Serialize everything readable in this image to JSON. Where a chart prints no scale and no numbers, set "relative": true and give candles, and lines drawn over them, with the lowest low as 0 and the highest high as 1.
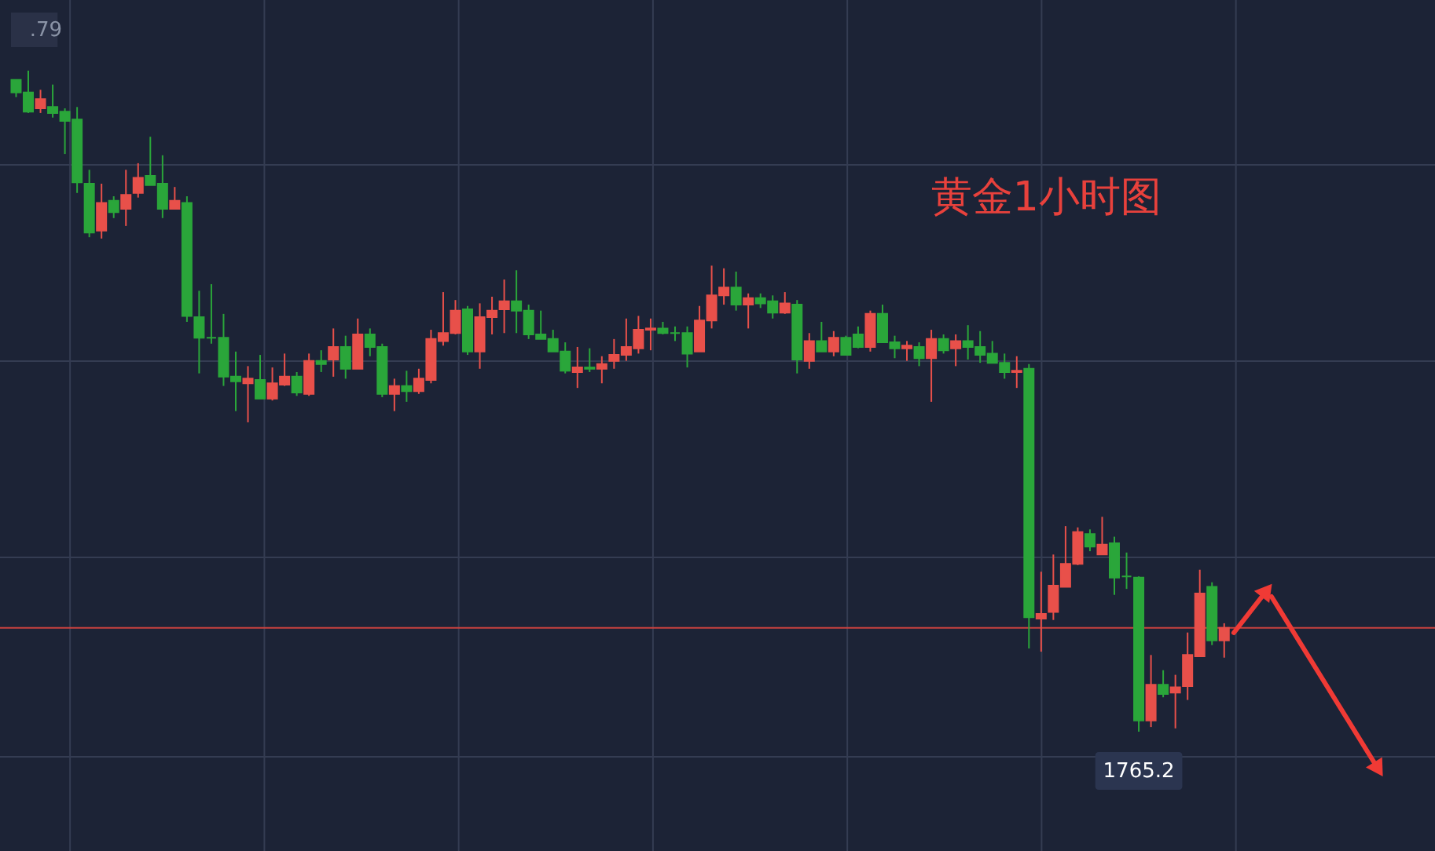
{
  "chart_data": {
    "type": "candlestick",
    "relative": true,
    "grid": true,
    "categories": [
      null,
      null,
      null,
      null,
      null,
      null,
      null,
      null,
      null,
      null,
      null,
      null,
      null,
      null,
      null,
      null,
      null,
      null,
      null,
      null,
      null,
      null,
      null,
      null,
      null,
      null,
      null,
      null,
      null,
      null,
      null,
      null,
      null,
      null,
      null,
      null,
      null,
      null,
      null,
      null,
      null,
      null,
      null,
      null,
      null,
      null,
      null,
      null,
      null,
      null,
      null,
      null,
      null,
      null,
      null,
      null,
      null,
      null,
      null,
      null,
      null,
      null,
      null,
      null,
      null,
      null,
      null,
      null,
      null,
      null,
      null,
      null,
      null,
      null,
      null,
      null,
      null,
      null,
      null,
      null,
      null,
      null,
      null,
      null,
      null,
      null,
      null,
      null,
      null,
      null,
      null,
      null,
      null,
      null,
      null,
      null,
      null,
      null,
      null,
      null
    ],
    "ohlc": [
      [
        0.986,
        0.986,
        0.96,
        0.967
      ],
      [
        0.967,
        1,
        0.936,
        0.938
      ],
      [
        0.943,
        0.971,
        0.936,
        0.957
      ],
      [
        0.945,
        0.979,
        0.929,
        0.936
      ],
      [
        0.938,
        0.943,
        0.874,
        0.924
      ],
      [
        0.926,
        0.945,
        0.815,
        0.831
      ],
      [
        0.829,
        0.85,
        0.748,
        0.755
      ],
      [
        0.758,
        0.829,
        0.746,
        0.8
      ],
      [
        0.803,
        0.81,
        0.777,
        0.786
      ],
      [
        0.791,
        0.85,
        0.765,
        0.812
      ],
      [
        0.815,
        0.86,
        0.808,
        0.838
      ],
      [
        0.841,
        0.9,
        0.827,
        0.827
      ],
      [
        0.829,
        0.872,
        0.777,
        0.791
      ],
      [
        0.791,
        0.824,
        0.791,
        0.803
      ],
      [
        0.8,
        0.81,
        0.62,
        0.629
      ],
      [
        0.627,
        0.667,
        0.542,
        0.596
      ],
      [
        0.596,
        0.677,
        0.587,
        0.596
      ],
      [
        0.596,
        0.632,
        0.523,
        0.537
      ],
      [
        0.537,
        0.575,
        0.485,
        0.53
      ],
      [
        0.527,
        0.553,
        0.468,
        0.534
      ],
      [
        0.532,
        0.57,
        0.504,
        0.504
      ],
      [
        0.504,
        0.551,
        0.501,
        0.527
      ],
      [
        0.525,
        0.572,
        0.523,
        0.537
      ],
      [
        0.537,
        0.544,
        0.508,
        0.513
      ],
      [
        0.511,
        0.572,
        0.508,
        0.561
      ],
      [
        0.561,
        0.577,
        0.544,
        0.556
      ],
      [
        0.563,
        0.61,
        0.537,
        0.582
      ],
      [
        0.582,
        0.599,
        0.534,
        0.549
      ],
      [
        0.549,
        0.625,
        0.549,
        0.601
      ],
      [
        0.601,
        0.61,
        0.568,
        0.582
      ],
      [
        0.582,
        0.587,
        0.506,
        0.511
      ],
      [
        0.511,
        0.534,
        0.485,
        0.523
      ],
      [
        0.523,
        0.546,
        0.499,
        0.515
      ],
      [
        0.515,
        0.549,
        0.511,
        0.534
      ],
      [
        0.532,
        0.608,
        0.527,
        0.594
      ],
      [
        0.591,
        0.665,
        0.584,
        0.603
      ],
      [
        0.603,
        0.653,
        0.601,
        0.637
      ],
      [
        0.639,
        0.644,
        0.57,
        0.575
      ],
      [
        0.575,
        0.648,
        0.549,
        0.627
      ],
      [
        0.627,
        0.658,
        0.601,
        0.637
      ],
      [
        0.639,
        0.684,
        0.603,
        0.651
      ],
      [
        0.651,
        0.698,
        0.603,
        0.637
      ],
      [
        0.637,
        0.646,
        0.594,
        0.601
      ],
      [
        0.601,
        0.637,
        0.594,
        0.594
      ],
      [
        0.594,
        0.608,
        0.575,
        0.575
      ],
      [
        0.575,
        0.589,
        0.542,
        0.546
      ],
      [
        0.544,
        0.582,
        0.52,
        0.551
      ],
      [
        0.551,
        0.58,
        0.544,
        0.549
      ],
      [
        0.549,
        0.568,
        0.527,
        0.556
      ],
      [
        0.561,
        0.594,
        0.549,
        0.57
      ],
      [
        0.57,
        0.625,
        0.561,
        0.582
      ],
      [
        0.58,
        0.629,
        0.572,
        0.608
      ],
      [
        0.608,
        0.625,
        0.577,
        0.61
      ],
      [
        0.61,
        0.62,
        0.601,
        0.603
      ],
      [
        0.603,
        0.613,
        0.591,
        0.603
      ],
      [
        0.603,
        0.613,
        0.551,
        0.572
      ],
      [
        0.575,
        0.644,
        0.575,
        0.622
      ],
      [
        0.622,
        0.705,
        0.61,
        0.66
      ],
      [
        0.66,
        0.701,
        0.646,
        0.672
      ],
      [
        0.672,
        0.696,
        0.637,
        0.646
      ],
      [
        0.646,
        0.663,
        0.61,
        0.656
      ],
      [
        0.656,
        0.663,
        0.641,
        0.648
      ],
      [
        0.651,
        0.66,
        0.625,
        0.634
      ],
      [
        0.634,
        0.665,
        0.632,
        0.648
      ],
      [
        0.646,
        0.653,
        0.542,
        0.563
      ],
      [
        0.561,
        0.603,
        0.549,
        0.591
      ],
      [
        0.591,
        0.62,
        0.575,
        0.575
      ],
      [
        0.575,
        0.606,
        0.568,
        0.596
      ],
      [
        0.596,
        0.599,
        0.57,
        0.57
      ],
      [
        0.601,
        0.613,
        0.58,
        0.582
      ],
      [
        0.582,
        0.637,
        0.575,
        0.632
      ],
      [
        0.632,
        0.646,
        0.589,
        0.589
      ],
      [
        0.589,
        0.599,
        0.565,
        0.58
      ],
      [
        0.58,
        0.591,
        0.561,
        0.584
      ],
      [
        0.582,
        0.589,
        0.553,
        0.565
      ],
      [
        0.565,
        0.608,
        0.499,
        0.594
      ],
      [
        0.594,
        0.601,
        0.572,
        0.577
      ],
      [
        0.58,
        0.601,
        0.553,
        0.591
      ],
      [
        0.591,
        0.615,
        0.563,
        0.582
      ],
      [
        0.582,
        0.606,
        0.558,
        0.57
      ],
      [
        0.572,
        0.591,
        0.558,
        0.558
      ],
      [
        0.558,
        0.572,
        0.534,
        0.544
      ],
      [
        0.544,
        0.568,
        0.52,
        0.546
      ],
      [
        0.549,
        0.556,
        0.126,
        0.173
      ],
      [
        0.171,
        0.242,
        0.121,
        0.178
      ],
      [
        0.181,
        0.268,
        0.169,
        0.221
      ],
      [
        0.219,
        0.311,
        0.219,
        0.254
      ],
      [
        0.254,
        0.309,
        0.252,
        0.302
      ],
      [
        0.299,
        0.306,
        0.273,
        0.28
      ],
      [
        0.268,
        0.325,
        0.268,
        0.283
      ],
      [
        0.285,
        0.295,
        0.207,
        0.233
      ],
      [
        0.235,
        0.271,
        0.216,
        0.235
      ],
      [
        0.233,
        0.235,
        0,
        0.017
      ],
      [
        0.017,
        0.116,
        0.007,
        0.071
      ],
      [
        0.071,
        0.093,
        0.052,
        0.057
      ],
      [
        0.059,
        0.086,
        0.005,
        0.067
      ],
      [
        0.069,
        0.15,
        0.048,
        0.116
      ],
      [
        0.114,
        0.245,
        0.114,
        0.209
      ],
      [
        0.219,
        0.226,
        0.131,
        0.138
      ],
      [
        0.138,
        0.164,
        0.112,
        0.157
      ]
    ],
    "colors": [
      "#2aa63a",
      "#2aa63a",
      "#e8504a",
      "#2aa63a",
      "#2aa63a",
      "#2aa63a",
      "#2aa63a",
      "#e8504a",
      "#2aa63a",
      "#e8504a",
      "#e8504a",
      "#2aa63a",
      "#2aa63a",
      "#e8504a",
      "#2aa63a",
      "#2aa63a",
      "#2aa63a",
      "#2aa63a",
      "#2aa63a",
      "#e8504a",
      "#2aa63a",
      "#e8504a",
      "#e8504a",
      "#2aa63a",
      "#e8504a",
      "#2aa63a",
      "#e8504a",
      "#2aa63a",
      "#e8504a",
      "#2aa63a",
      "#2aa63a",
      "#e8504a",
      "#2aa63a",
      "#e8504a",
      "#e8504a",
      "#e8504a",
      "#e8504a",
      "#2aa63a",
      "#e8504a",
      "#e8504a",
      "#e8504a",
      "#2aa63a",
      "#2aa63a",
      "#2aa63a",
      "#2aa63a",
      "#2aa63a",
      "#e8504a",
      "#2aa63a",
      "#e8504a",
      "#e8504a",
      "#e8504a",
      "#e8504a",
      "#e8504a",
      "#2aa63a",
      "#2aa63a",
      "#2aa63a",
      "#e8504a",
      "#e8504a",
      "#e8504a",
      "#2aa63a",
      "#e8504a",
      "#2aa63a",
      "#2aa63a",
      "#e8504a",
      "#2aa63a",
      "#e8504a",
      "#2aa63a",
      "#e8504a",
      "#2aa63a",
      "#2aa63a",
      "#e8504a",
      "#2aa63a",
      "#2aa63a",
      "#e8504a",
      "#2aa63a",
      "#e8504a",
      "#2aa63a",
      "#e8504a",
      "#2aa63a",
      "#2aa63a",
      "#2aa63a",
      "#2aa63a",
      "#e8504a",
      "#2aa63a",
      "#e8504a",
      "#e8504a",
      "#e8504a",
      "#e8504a",
      "#2aa63a",
      "#e8504a",
      "#2aa63a",
      "#2aa63a",
      "#2aa63a",
      "#e8504a",
      "#2aa63a",
      "#e8504a",
      "#e8504a",
      "#e8504a",
      "#2aa63a",
      "#e8504a"
    ],
    "ref_lines": [
      {
        "axis": "y",
        "value": 0.157,
        "color": "#c8423f"
      }
    ],
    "annotations": [
      "黄金1小时图",
      ".79",
      {
        "text": "1765.2",
        "y": 0
      }
    ]
  }
}
